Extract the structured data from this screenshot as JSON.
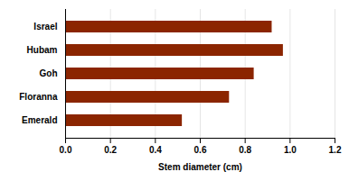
{
  "chart_data": {
    "type": "bar",
    "orientation": "horizontal",
    "categories": [
      "Emerald",
      "Floranna",
      "Goh",
      "Hubam",
      "Israel"
    ],
    "values": [
      0.52,
      0.73,
      0.84,
      0.97,
      0.92
    ],
    "color": "#8B2500",
    "xlabel": "Stem diameter (cm)",
    "xlim": [
      0,
      1.2
    ],
    "xticks": [
      0,
      0.2,
      0.4,
      0.6,
      0.8,
      1,
      1.2
    ],
    "grid": true
  }
}
